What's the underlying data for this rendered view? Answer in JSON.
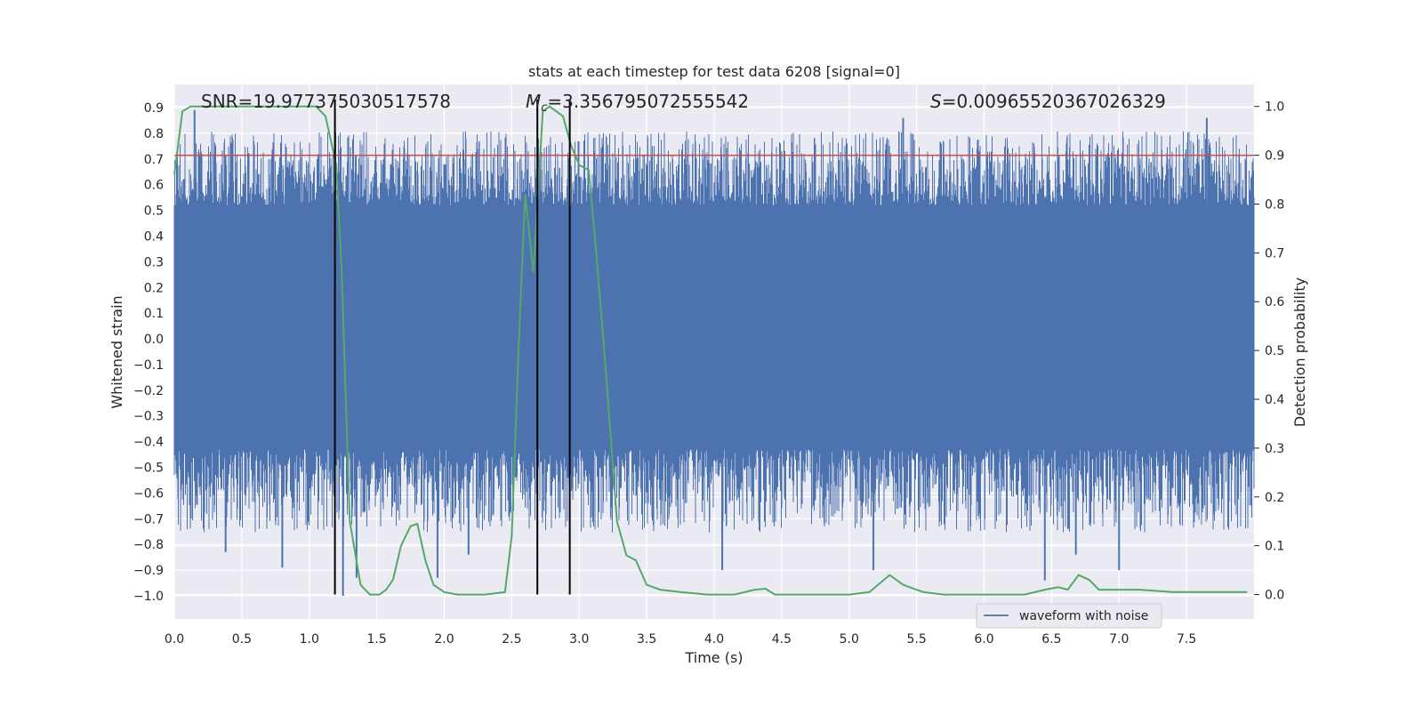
{
  "chart_data": {
    "type": "line",
    "title": "stats at each timestep for test data 6208 [signal=0]",
    "xlabel": "Time (s)",
    "ylabel": "Whitened strain",
    "y2label": "Detection probability",
    "xlim": [
      0.0,
      8.0
    ],
    "ylim": [
      -1.09,
      0.99
    ],
    "y2lim": [
      -0.05,
      1.045
    ],
    "x_ticks": [
      0.0,
      0.5,
      1.0,
      1.5,
      2.0,
      2.5,
      3.0,
      3.5,
      4.0,
      4.5,
      5.0,
      5.5,
      6.0,
      6.5,
      7.0,
      7.5
    ],
    "x_tick_labels": [
      "0.0",
      "0.5",
      "1.0",
      "1.5",
      "2.0",
      "2.5",
      "3.0",
      "3.5",
      "4.0",
      "4.5",
      "5.0",
      "5.5",
      "6.0",
      "6.5",
      "7.0",
      "7.5"
    ],
    "y_ticks": [
      0.9,
      0.8,
      0.7,
      0.6,
      0.5,
      0.4,
      0.3,
      0.2,
      0.1,
      0.0,
      -0.1,
      -0.2,
      -0.3,
      -0.4,
      -0.5,
      -0.6,
      -0.7,
      -0.8,
      -0.9,
      -1.0
    ],
    "y_tick_labels": [
      "0.9",
      "0.8",
      "0.7",
      "0.6",
      "0.5",
      "0.4",
      "0.3",
      "0.2",
      "0.1",
      "0.0",
      "−0.1",
      "−0.2",
      "−0.3",
      "−0.4",
      "−0.5",
      "−0.6",
      "−0.7",
      "−0.8",
      "−0.9",
      "−1.0"
    ],
    "y2_ticks": [
      1.0,
      0.9,
      0.8,
      0.7,
      0.6,
      0.5,
      0.4,
      0.3,
      0.2,
      0.1,
      0.0
    ],
    "y2_tick_labels": [
      "1.0",
      "0.9",
      "0.8",
      "0.7",
      "0.6",
      "0.5",
      "0.4",
      "0.3",
      "0.2",
      "0.1",
      "0.0"
    ],
    "grid": true,
    "legend": {
      "placement": "lower-right",
      "entries": [
        {
          "label": "waveform with noise",
          "color": "#4c72b0"
        }
      ]
    },
    "annotations": {
      "snr_text": "SNR=19.977375030517578",
      "mc_symbol": "M",
      "mc_subscript": "c",
      "mc_value": "=3.356795072555542",
      "s_symbol": "S",
      "s_value": "=0.00965520367026329"
    },
    "threshold_line": {
      "axis": "y2",
      "value": 0.9,
      "color": "#c44e52"
    },
    "vertical_lines": {
      "x": [
        1.19,
        2.69,
        2.93
      ],
      "color": "#000000"
    },
    "series": [
      {
        "name": "waveform with noise",
        "axis": "y",
        "style": "noise-band",
        "color": "#4c72b0",
        "sample_rate_hz": 2048,
        "band": {
          "core_low": -0.43,
          "core_high": 0.52,
          "typical_peak": 0.7,
          "typical_trough": -0.62
        },
        "visible_extremes": [
          {
            "x": 0.15,
            "y": 0.89
          },
          {
            "x": 0.38,
            "y": -0.83
          },
          {
            "x": 0.8,
            "y": -0.89
          },
          {
            "x": 1.25,
            "y": -1.0
          },
          {
            "x": 1.35,
            "y": -0.93
          },
          {
            "x": 1.95,
            "y": -0.93
          },
          {
            "x": 2.18,
            "y": -0.84
          },
          {
            "x": 4.06,
            "y": -0.9
          },
          {
            "x": 5.18,
            "y": -0.9
          },
          {
            "x": 5.4,
            "y": 0.86
          },
          {
            "x": 6.45,
            "y": -0.94
          },
          {
            "x": 6.68,
            "y": -0.84
          },
          {
            "x": 7.0,
            "y": -0.9
          },
          {
            "x": 7.65,
            "y": 0.86
          }
        ]
      },
      {
        "name": "",
        "axis": "y2",
        "style": "line",
        "color": "#55a868",
        "x": [
          0.0,
          0.06,
          0.12,
          0.5,
          0.9,
          1.05,
          1.12,
          1.2,
          1.24,
          1.3,
          1.38,
          1.45,
          1.52,
          1.57,
          1.62,
          1.68,
          1.75,
          1.8,
          1.86,
          1.92,
          2.0,
          2.1,
          2.2,
          2.3,
          2.45,
          2.5,
          2.55,
          2.6,
          2.66,
          2.73,
          2.78,
          2.83,
          2.88,
          2.94,
          3.0,
          3.07,
          3.12,
          3.2,
          3.28,
          3.35,
          3.42,
          3.5,
          3.6,
          3.75,
          3.95,
          4.15,
          4.3,
          4.38,
          4.45,
          4.6,
          4.8,
          5.0,
          5.15,
          5.3,
          5.4,
          5.55,
          5.7,
          6.0,
          6.3,
          6.45,
          6.55,
          6.62,
          6.7,
          6.78,
          6.85,
          7.0,
          7.15,
          7.4,
          7.6,
          7.75,
          7.8,
          7.95
        ],
        "y": [
          0.86,
          0.99,
          1.0,
          1.0,
          1.0,
          1.0,
          0.98,
          0.88,
          0.66,
          0.15,
          0.02,
          0.0,
          0.0,
          0.01,
          0.03,
          0.1,
          0.14,
          0.145,
          0.07,
          0.02,
          0.005,
          0.0,
          0.0,
          0.0,
          0.005,
          0.12,
          0.5,
          0.82,
          0.66,
          0.99,
          1.0,
          0.99,
          0.98,
          0.92,
          0.88,
          0.87,
          0.72,
          0.45,
          0.15,
          0.08,
          0.07,
          0.02,
          0.01,
          0.005,
          0.0,
          0.0,
          0.01,
          0.012,
          0.0,
          0.0,
          0.0,
          0.0,
          0.005,
          0.04,
          0.02,
          0.005,
          0.0,
          0.0,
          0.0,
          0.01,
          0.015,
          0.01,
          0.04,
          0.03,
          0.01,
          0.01,
          0.01,
          0.005,
          0.005,
          0.005,
          0.005,
          0.005
        ]
      }
    ]
  }
}
